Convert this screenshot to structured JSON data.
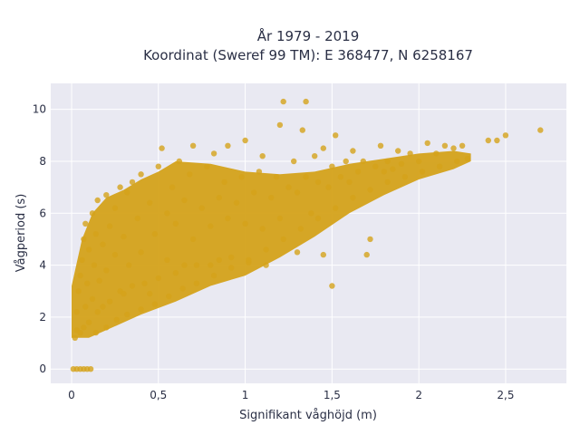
{
  "chart_data": {
    "type": "scatter",
    "title": "År 1979 - 2019",
    "subtitle": "Koordinat (Sweref 99 TM): E 368477, N 6258167",
    "xlabel": "Signifikant våghöjd (m)",
    "ylabel": "Vågperiod (s)",
    "xlim": [
      -0.12,
      2.85
    ],
    "ylim": [
      -0.55,
      11
    ],
    "x_ticks": [
      0,
      0.5,
      1,
      1.5,
      2,
      2.5
    ],
    "x_tick_labels": [
      "0",
      "0,5",
      "1",
      "1,5",
      "2",
      "2,5"
    ],
    "y_ticks": [
      0,
      2,
      4,
      6,
      8,
      10
    ],
    "y_tick_labels": [
      "0",
      "2",
      "4",
      "6",
      "8",
      "10"
    ],
    "grid": true,
    "legend": "none",
    "colors": {
      "marker": "#d4a21a",
      "plot_bg": "#e9e9f2",
      "grid": "#ffffff",
      "text": "#2a2f45"
    },
    "series": [
      {
        "marker_color": "#d4a21a",
        "points": [
          [
            0.01,
            0
          ],
          [
            0.03,
            0
          ],
          [
            0.05,
            0
          ],
          [
            0.07,
            0
          ],
          [
            0.09,
            0
          ],
          [
            0.11,
            0
          ],
          [
            0.02,
            1.2
          ],
          [
            0.03,
            1.5
          ],
          [
            0.03,
            2.2
          ],
          [
            0.04,
            3.0
          ],
          [
            0.05,
            1.4
          ],
          [
            0.05,
            3.6
          ],
          [
            0.06,
            4.2
          ],
          [
            0.07,
            1.6
          ],
          [
            0.07,
            5.0
          ],
          [
            0.08,
            2.4
          ],
          [
            0.08,
            5.6
          ],
          [
            0.09,
            3.3
          ],
          [
            0.1,
            4.6
          ],
          [
            0.1,
            1.8
          ],
          [
            0.12,
            6.0
          ],
          [
            0.12,
            2.7
          ],
          [
            0.13,
            4.0
          ],
          [
            0.14,
            5.2
          ],
          [
            0.15,
            2.2
          ],
          [
            0.15,
            6.5
          ],
          [
            0.16,
            3.4
          ],
          [
            0.18,
            4.8
          ],
          [
            0.18,
            2.4
          ],
          [
            0.2,
            6.7
          ],
          [
            0.2,
            3.8
          ],
          [
            0.22,
            5.5
          ],
          [
            0.22,
            2.6
          ],
          [
            0.25,
            6.2
          ],
          [
            0.25,
            4.4
          ],
          [
            0.28,
            3.0
          ],
          [
            0.28,
            7.0
          ],
          [
            0.3,
            5.1
          ],
          [
            0.3,
            2.9
          ],
          [
            0.32,
            6.8
          ],
          [
            0.33,
            4.0
          ],
          [
            0.35,
            7.2
          ],
          [
            0.35,
            3.2
          ],
          [
            0.38,
            5.8
          ],
          [
            0.4,
            4.5
          ],
          [
            0.4,
            7.5
          ],
          [
            0.42,
            3.3
          ],
          [
            0.45,
            6.4
          ],
          [
            0.45,
            2.9
          ],
          [
            0.48,
            5.2
          ],
          [
            0.5,
            7.8
          ],
          [
            0.5,
            3.5
          ],
          [
            0.52,
            8.5
          ],
          [
            0.55,
            6.0
          ],
          [
            0.55,
            4.2
          ],
          [
            0.58,
            7.0
          ],
          [
            0.6,
            3.7
          ],
          [
            0.6,
            5.6
          ],
          [
            0.62,
            8.0
          ],
          [
            0.65,
            6.5
          ],
          [
            0.65,
            4.0
          ],
          [
            0.68,
            7.5
          ],
          [
            0.7,
            5.0
          ],
          [
            0.7,
            8.6
          ],
          [
            0.72,
            4.0
          ],
          [
            0.75,
            6.2
          ],
          [
            0.78,
            7.8
          ],
          [
            0.8,
            5.5
          ],
          [
            0.8,
            4.0
          ],
          [
            0.82,
            8.3
          ],
          [
            0.85,
            6.6
          ],
          [
            0.85,
            4.2
          ],
          [
            0.88,
            7.2
          ],
          [
            0.9,
            5.8
          ],
          [
            0.9,
            8.6
          ],
          [
            0.92,
            4.3
          ],
          [
            0.95,
            6.4
          ],
          [
            0.98,
            7.4
          ],
          [
            1.0,
            5.6
          ],
          [
            1.0,
            8.8
          ],
          [
            1.02,
            4.1
          ],
          [
            1.05,
            6.8
          ],
          [
            1.08,
            7.6
          ],
          [
            1.1,
            5.4
          ],
          [
            1.1,
            8.2
          ],
          [
            1.12,
            4.0
          ],
          [
            1.15,
            6.6
          ],
          [
            1.18,
            7.4
          ],
          [
            1.2,
            9.4
          ],
          [
            1.2,
            5.8
          ],
          [
            1.22,
            10.3
          ],
          [
            1.25,
            7.0
          ],
          [
            1.28,
            8.0
          ],
          [
            1.3,
            4.5
          ],
          [
            1.3,
            6.8
          ],
          [
            1.33,
            9.2
          ],
          [
            1.35,
            10.3
          ],
          [
            1.35,
            7.4
          ],
          [
            1.38,
            6.0
          ],
          [
            1.4,
            8.2
          ],
          [
            1.42,
            7.2
          ],
          [
            1.45,
            4.4
          ],
          [
            1.45,
            8.5
          ],
          [
            1.48,
            7.0
          ],
          [
            1.5,
            3.2
          ],
          [
            1.5,
            7.8
          ],
          [
            1.52,
            9.0
          ],
          [
            1.55,
            7.4
          ],
          [
            1.58,
            8.0
          ],
          [
            1.6,
            7.2
          ],
          [
            1.62,
            8.4
          ],
          [
            1.65,
            7.6
          ],
          [
            1.68,
            8.0
          ],
          [
            1.7,
            4.4
          ],
          [
            1.72,
            5.0
          ],
          [
            1.75,
            7.8
          ],
          [
            1.78,
            8.6
          ],
          [
            1.8,
            7.6
          ],
          [
            1.82,
            8.0
          ],
          [
            1.85,
            7.7
          ],
          [
            1.88,
            8.4
          ],
          [
            1.9,
            7.9
          ],
          [
            1.95,
            8.3
          ],
          [
            2.0,
            8.0
          ],
          [
            2.05,
            8.7
          ],
          [
            2.1,
            8.3
          ],
          [
            2.15,
            8.6
          ],
          [
            2.2,
            8.5
          ],
          [
            2.25,
            8.6
          ],
          [
            2.28,
            8.1
          ],
          [
            2.4,
            8.8
          ],
          [
            2.45,
            8.8
          ],
          [
            2.5,
            9.0
          ],
          [
            2.7,
            9.2
          ],
          [
            0.14,
            1.4
          ],
          [
            0.2,
            1.6
          ],
          [
            0.26,
            1.9
          ],
          [
            0.32,
            2.1
          ],
          [
            0.4,
            2.3
          ],
          [
            0.48,
            2.5
          ],
          [
            0.56,
            2.8
          ],
          [
            0.64,
            3.1
          ],
          [
            0.72,
            3.3
          ],
          [
            0.82,
            3.6
          ],
          [
            0.92,
            3.9
          ],
          [
            1.02,
            4.2
          ],
          [
            1.12,
            4.6
          ],
          [
            1.22,
            5.0
          ],
          [
            1.32,
            5.4
          ],
          [
            1.42,
            5.8
          ],
          [
            1.52,
            6.2
          ],
          [
            1.62,
            6.6
          ],
          [
            1.72,
            6.9
          ],
          [
            1.82,
            7.2
          ],
          [
            1.92,
            7.4
          ],
          [
            2.02,
            7.6
          ],
          [
            2.12,
            7.8
          ],
          [
            2.22,
            8.0
          ]
        ]
      }
    ]
  }
}
